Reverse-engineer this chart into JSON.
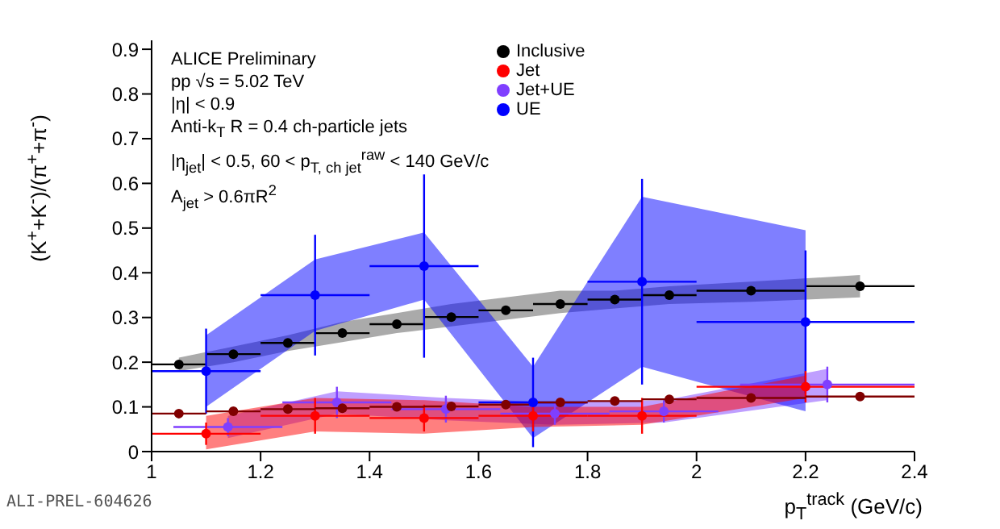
{
  "chart_data": {
    "type": "scatter",
    "xlabel": "p$_{T}$$^{track}$ (GeV/c)",
    "ylabel": "(K$^{+}$+K$^{-}$)/(π$^{+}$+π$^{-}$)",
    "annotations": [
      "ALICE Preliminary",
      "pp √s = 5.02 TeV",
      "|η| < 0.9",
      "Anti-k$_{T}$ R = 0.4 ch-particle jets",
      "|η$_{jet}$| < 0.5, 60 < p$_{T, ch jet}$$^{raw}$ < 140 GeV/c",
      "A$_{jet}$ > 0.6πR$^{2}$",
      "ALI-PREL-604626"
    ],
    "xlim": [
      1,
      2.4
    ],
    "xticks": [
      1,
      1.2,
      1.4,
      1.6,
      1.8,
      2,
      2.2,
      2.4
    ],
    "ylim": [
      0,
      0.92
    ],
    "yticks": [
      0,
      0.1,
      0.2,
      0.3,
      0.4,
      0.5,
      0.6,
      0.7,
      0.8,
      0.9
    ],
    "legend": "top",
    "marker": "circle",
    "grid": false,
    "series": [
      {
        "name": "Inclusive",
        "color": "#000000",
        "x": [
          1.05,
          1.15,
          1.25,
          1.35,
          1.45,
          1.55,
          1.65,
          1.75,
          1.85,
          1.95,
          2.1,
          2.3
        ],
        "values": [
          0.195,
          0.218,
          0.243,
          0.265,
          0.285,
          0.301,
          0.316,
          0.33,
          0.34,
          0.35,
          0.36,
          0.37
        ],
        "xerrors": [
          0.05,
          0.05,
          0.05,
          0.05,
          0.05,
          0.05,
          0.05,
          0.05,
          0.05,
          0.05,
          0.1,
          0.1
        ],
        "lower": [
          0.18,
          0.2,
          0.225,
          0.245,
          0.265,
          0.28,
          0.295,
          0.31,
          0.32,
          0.33,
          0.335,
          0.345
        ],
        "upper": [
          0.21,
          0.235,
          0.26,
          0.29,
          0.31,
          0.33,
          0.345,
          0.36,
          0.36,
          0.37,
          0.38,
          0.395
        ]
      },
      {
        "name": "Jet+UE",
        "color": "#7f3fff",
        "x": [
          1.14,
          1.34,
          1.54,
          1.74,
          1.94,
          2.24
        ],
        "values": [
          0.055,
          0.11,
          0.095,
          0.085,
          0.09,
          0.15
        ],
        "errors": [
          0.02,
          0.035,
          0.03,
          0.025,
          0.025,
          0.04
        ],
        "xerrors": [
          0.1,
          0.1,
          0.1,
          0.1,
          0.1,
          0.16
        ],
        "lower": [
          0.03,
          0.085,
          0.07,
          0.06,
          0.065,
          0.115
        ],
        "upper": [
          0.08,
          0.135,
          0.12,
          0.11,
          0.115,
          0.185
        ]
      },
      {
        "name": "UE",
        "color": "#0000ff",
        "x": [
          1.1,
          1.3,
          1.5,
          1.7,
          1.9,
          2.2
        ],
        "values": [
          0.18,
          0.35,
          0.415,
          0.11,
          0.38,
          0.29
        ],
        "errors": [
          0.095,
          0.135,
          0.205,
          0.1,
          0.23,
          0.16
        ],
        "xerrors": [
          0.1,
          0.1,
          0.1,
          0.1,
          0.1,
          0.2
        ],
        "lower": [
          0.1,
          0.27,
          0.34,
          0.03,
          0.19,
          0.09
        ],
        "upper": [
          0.26,
          0.43,
          0.49,
          0.19,
          0.57,
          0.495
        ]
      },
      {
        "name": "Jet",
        "color": "#ff0000",
        "x": [
          1.1,
          1.3,
          1.5,
          1.7,
          1.9,
          2.2
        ],
        "values": [
          0.04,
          0.08,
          0.075,
          0.08,
          0.08,
          0.145
        ],
        "errors": [
          0.025,
          0.04,
          0.03,
          0.035,
          0.04,
          0.035
        ],
        "xerrors": [
          0.1,
          0.1,
          0.1,
          0.1,
          0.1,
          0.2
        ],
        "lower": [
          0.005,
          0.045,
          0.04,
          0.055,
          0.06,
          0.12
        ],
        "upper": [
          0.08,
          0.12,
          0.115,
          0.1,
          0.1,
          0.17
        ]
      },
      {
        "color": "#800000",
        "x": [
          1.05,
          1.15,
          1.25,
          1.35,
          1.45,
          1.55,
          1.65,
          1.75,
          1.85,
          1.95,
          2.1,
          2.3
        ],
        "values": [
          0.085,
          0.09,
          0.095,
          0.097,
          0.1,
          0.101,
          0.105,
          0.11,
          0.113,
          0.117,
          0.12,
          0.123
        ],
        "xerrors": [
          0.05,
          0.05,
          0.05,
          0.05,
          0.05,
          0.05,
          0.05,
          0.05,
          0.05,
          0.05,
          0.1,
          0.1
        ]
      }
    ]
  }
}
